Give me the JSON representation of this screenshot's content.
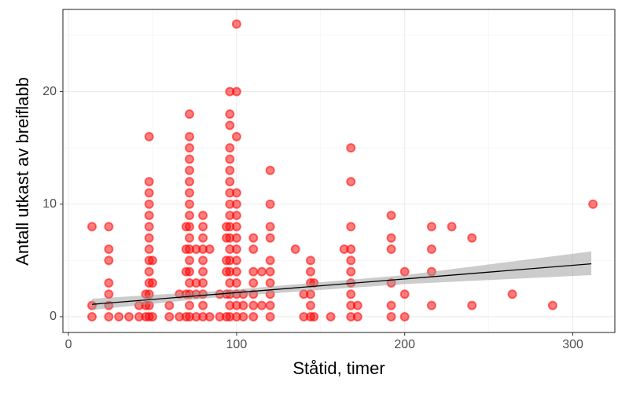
{
  "chart_data": {
    "type": "scatter",
    "x_label": "Ståtid, timer",
    "y_label": "Antall utkast av breiflabb",
    "xlim": [
      -3.3,
      325
    ],
    "ylim": [
      -1.4,
      27.3
    ],
    "xticks": [
      0,
      100,
      200,
      300
    ],
    "yticks": [
      0,
      10,
      20
    ],
    "x_minor_ticks": [
      50,
      150,
      250
    ],
    "y_minor_ticks": [
      5,
      15,
      25
    ],
    "grid": true,
    "color": "#ff0000",
    "points": {
      "x": [
        14,
        14,
        14,
        24,
        24,
        24,
        24,
        24,
        24,
        24,
        30,
        36,
        42,
        42,
        46,
        46,
        46,
        48,
        48,
        48,
        48,
        48,
        48,
        48,
        48,
        48,
        48,
        48,
        48,
        48,
        48,
        50,
        50,
        50,
        60,
        60,
        66,
        66,
        70,
        70,
        70,
        70,
        70,
        72,
        72,
        72,
        72,
        72,
        72,
        72,
        72,
        72,
        72,
        72,
        72,
        72,
        72,
        72,
        72,
        72,
        72,
        76,
        76,
        76,
        76,
        80,
        80,
        80,
        80,
        80,
        80,
        80,
        80,
        80,
        80,
        84,
        84,
        90,
        90,
        94,
        94,
        94,
        94,
        94,
        94,
        96,
        96,
        96,
        96,
        96,
        96,
        96,
        96,
        96,
        96,
        96,
        96,
        96,
        96,
        96,
        96,
        96,
        96,
        96,
        100,
        100,
        100,
        100,
        100,
        100,
        100,
        100,
        100,
        100,
        100,
        100,
        100,
        100,
        100,
        104,
        104,
        104,
        110,
        110,
        110,
        110,
        110,
        110,
        110,
        115,
        115,
        120,
        120,
        120,
        120,
        120,
        120,
        120,
        120,
        120,
        120,
        135,
        140,
        140,
        144,
        144,
        144,
        144,
        144,
        144,
        146,
        146,
        156,
        164,
        168,
        168,
        168,
        168,
        168,
        168,
        168,
        168,
        168,
        168,
        172,
        172,
        192,
        192,
        192,
        192,
        192,
        192,
        200,
        200,
        200,
        216,
        216,
        216,
        216,
        228,
        240,
        240,
        264,
        288,
        312
      ],
      "y": [
        0,
        1,
        8,
        0,
        1,
        2,
        3,
        5,
        6,
        8,
        0,
        0,
        0,
        1,
        0,
        1,
        2,
        0,
        1,
        2,
        3,
        4,
        5,
        6,
        7,
        8,
        9,
        10,
        11,
        12,
        16,
        0,
        3,
        5,
        0,
        1,
        0,
        2,
        0,
        2,
        4,
        6,
        8,
        0,
        1,
        2,
        3,
        4,
        5,
        6,
        7,
        8,
        9,
        10,
        11,
        12,
        13,
        14,
        15,
        16,
        18,
        0,
        2,
        3,
        6,
        0,
        1,
        2,
        3,
        4,
        5,
        6,
        7,
        8,
        9,
        0,
        6,
        0,
        2,
        0,
        2,
        4,
        5,
        7,
        8,
        0,
        1,
        2,
        3,
        4,
        5,
        6,
        7,
        8,
        9,
        10,
        11,
        12,
        13,
        14,
        15,
        17,
        18,
        20,
        0,
        1,
        2,
        3,
        4,
        5,
        6,
        7,
        8,
        9,
        10,
        11,
        16,
        20,
        26,
        0,
        1,
        2,
        0,
        1,
        2,
        3,
        4,
        6,
        7,
        1,
        4,
        0,
        1,
        2,
        3,
        4,
        5,
        7,
        8,
        10,
        13,
        6,
        0,
        2,
        0,
        1,
        2,
        3,
        4,
        5,
        0,
        3,
        0,
        6,
        0,
        1,
        2,
        3,
        4,
        5,
        6,
        8,
        12,
        15,
        0,
        1,
        0,
        1,
        3,
        6,
        7,
        9,
        0,
        2,
        4,
        1,
        4,
        6,
        8,
        8,
        1,
        7,
        2,
        1,
        10
      ]
    },
    "trend": {
      "x": [
        14,
        311
      ],
      "y": [
        1.1,
        4.7
      ]
    },
    "band": {
      "x": [
        14,
        90,
        200,
        311
      ],
      "lower": [
        0.6,
        1.75,
        2.9,
        3.7
      ],
      "upper": [
        1.6,
        2.3,
        3.7,
        5.8
      ]
    }
  }
}
